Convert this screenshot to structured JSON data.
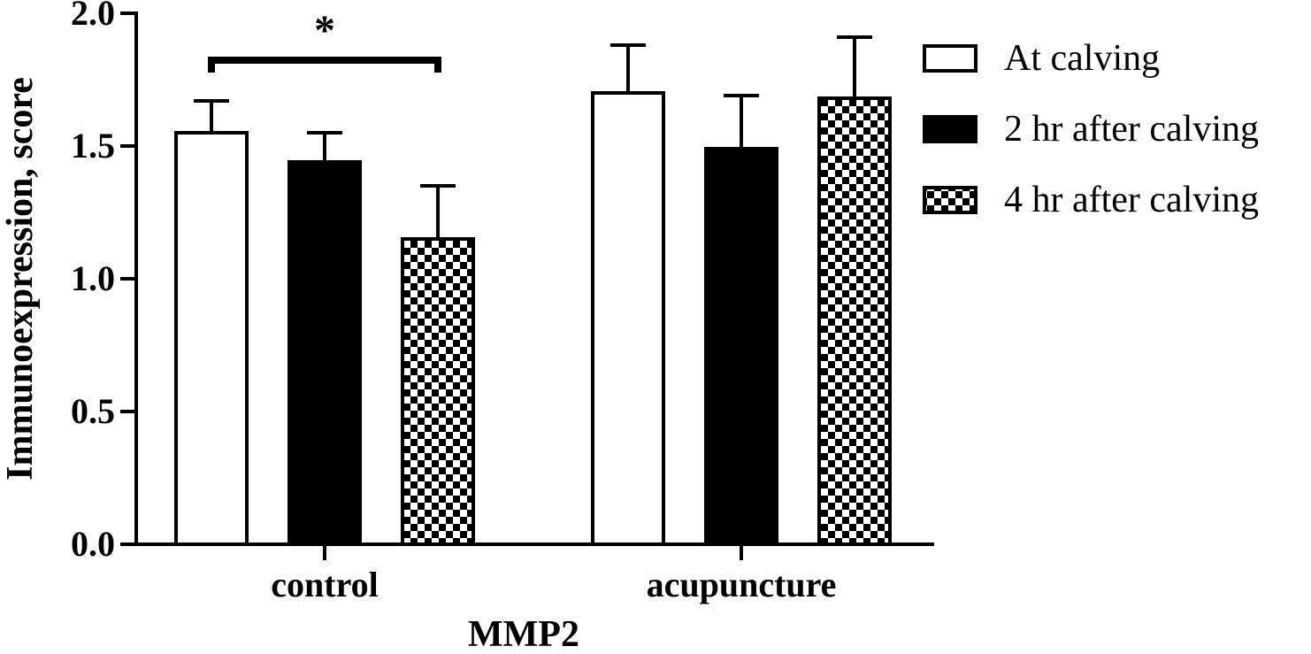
{
  "chart_data": {
    "type": "bar",
    "title": "",
    "xlabel": "MMP2",
    "ylabel": "Immunoexpression, score",
    "ylim": [
      0,
      2.0
    ],
    "yticks": [
      0.0,
      0.5,
      1.0,
      1.5,
      2.0
    ],
    "ytick_labels": [
      "0.0",
      "0.5",
      "1.0",
      "1.5",
      "2.0"
    ],
    "categories": [
      "control",
      "acupuncture"
    ],
    "series": [
      {
        "name": "At calving",
        "values": [
          1.55,
          1.7
        ],
        "errors": [
          0.12,
          0.18
        ],
        "fill": "white"
      },
      {
        "name": "2 hr after calving",
        "values": [
          1.44,
          1.49
        ],
        "errors": [
          0.11,
          0.2
        ],
        "fill": "black"
      },
      {
        "name": "4 hr after calving",
        "values": [
          1.15,
          1.68
        ],
        "errors": [
          0.2,
          0.23
        ],
        "fill": "checker"
      }
    ],
    "legend_position": "right",
    "annotations": [
      {
        "text": "*",
        "category": "control",
        "from_series": 0,
        "to_series": 2
      }
    ],
    "grid": false
  },
  "colors": {
    "bar_edge": "#000000",
    "background": "#ffffff"
  }
}
